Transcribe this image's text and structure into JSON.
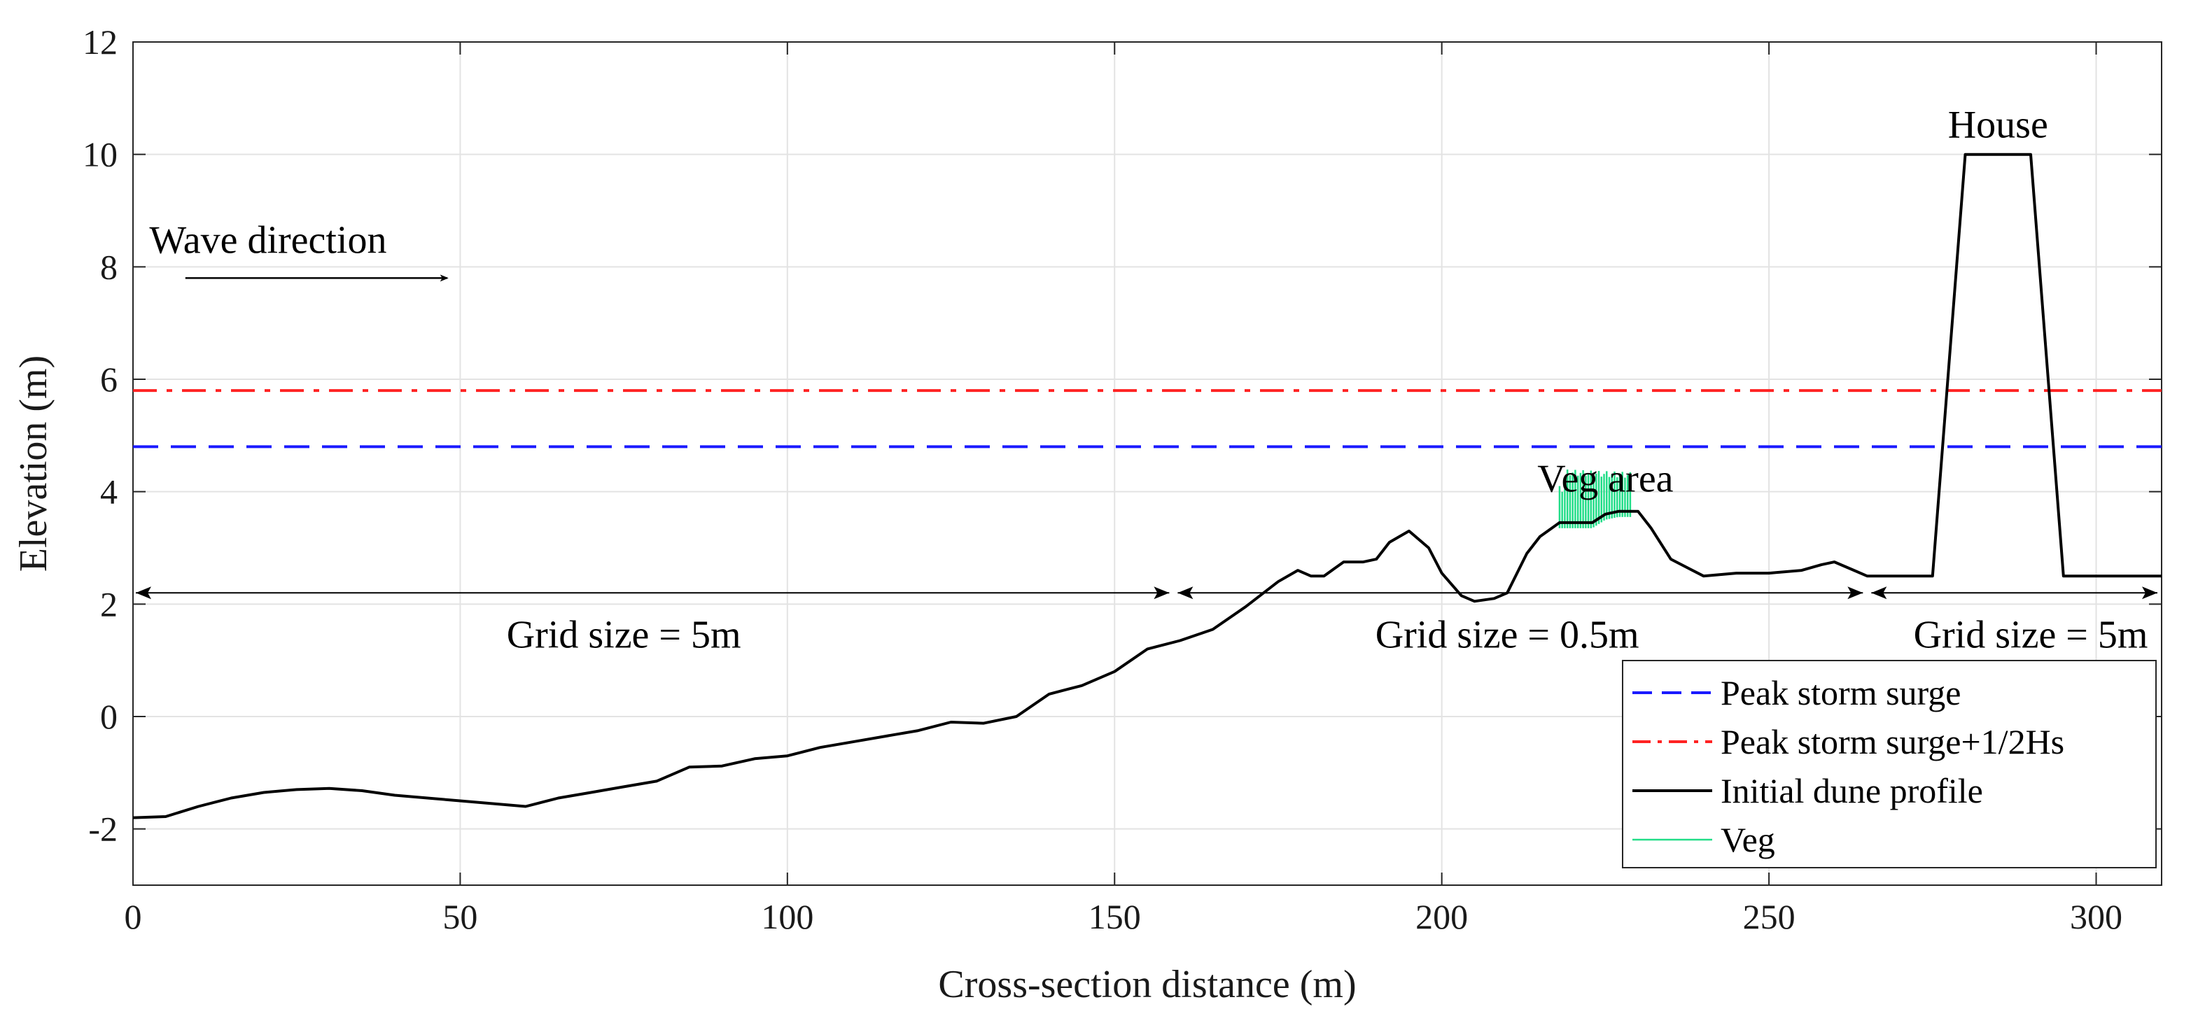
{
  "chart_data": {
    "type": "line",
    "title": "",
    "xlabel": "Cross-section distance (m)",
    "ylabel": "Elevation (m)",
    "xlim": [
      0,
      310
    ],
    "ylim": [
      -3,
      12
    ],
    "grid": true,
    "xticks": [
      0,
      50,
      100,
      150,
      200,
      250,
      300
    ],
    "yticks": [
      -2,
      0,
      2,
      4,
      6,
      8,
      10,
      12
    ],
    "legend_position": "bottom-right",
    "colors": {
      "surge": "#1a1aff",
      "surge_hs": "#ff2222",
      "profile": "#000000",
      "veg": "#22dd88"
    },
    "series": [
      {
        "name": "Peak storm surge",
        "style": "dashed",
        "x": [
          0,
          310
        ],
        "y": [
          4.8,
          4.8
        ]
      },
      {
        "name": "Peak storm surge+1/2Hs",
        "style": "dash-dot",
        "x": [
          0,
          310
        ],
        "y": [
          5.8,
          5.8
        ]
      },
      {
        "name": "Initial dune profile",
        "style": "solid",
        "x": [
          0,
          5,
          10,
          15,
          20,
          25,
          30,
          35,
          40,
          45,
          50,
          55,
          60,
          65,
          70,
          75,
          80,
          85,
          90,
          95,
          100,
          105,
          110,
          115,
          120,
          125,
          130,
          135,
          140,
          145,
          150,
          155,
          160,
          165,
          170,
          175,
          178,
          180,
          182,
          185,
          188,
          190,
          192,
          195,
          198,
          200,
          203,
          205,
          208,
          210,
          213,
          215,
          218,
          220,
          223,
          225,
          227,
          230,
          232,
          235,
          240,
          245,
          250,
          255,
          258,
          260,
          263,
          265,
          270,
          275,
          280,
          290,
          295,
          300,
          310
        ],
        "y": [
          -1.8,
          -1.78,
          -1.6,
          -1.45,
          -1.35,
          -1.3,
          -1.28,
          -1.32,
          -1.4,
          -1.45,
          -1.5,
          -1.55,
          -1.6,
          -1.45,
          -1.35,
          -1.25,
          -1.15,
          -0.9,
          -0.88,
          -0.75,
          -0.7,
          -0.55,
          -0.45,
          -0.35,
          -0.25,
          -0.1,
          -0.12,
          0.0,
          0.4,
          0.55,
          0.8,
          1.2,
          1.35,
          1.55,
          1.95,
          2.4,
          2.6,
          2.5,
          2.5,
          2.75,
          2.75,
          2.8,
          3.1,
          3.3,
          3.0,
          2.55,
          2.15,
          2.05,
          2.1,
          2.2,
          2.9,
          3.2,
          3.45,
          3.45,
          3.45,
          3.6,
          3.65,
          3.65,
          3.35,
          2.8,
          2.5,
          2.55,
          2.55,
          2.6,
          2.7,
          2.75,
          2.6,
          2.5,
          2.5,
          2.5,
          10.0,
          10.0,
          2.5,
          2.5,
          2.5
        ]
      },
      {
        "name": "Veg",
        "style": "stems",
        "x_range": [
          218,
          229
        ],
        "top_y": 4.3,
        "bottom_y": 3.5
      }
    ],
    "annotations": {
      "wave_direction": "Wave direction",
      "veg_area": "Veg area",
      "house": "House",
      "grid1": "Grid size = 5m",
      "grid2": "Grid size = 0.5m",
      "grid3": "Grid size = 5m"
    },
    "wave_arrow": {
      "x_from": 8,
      "x_to": 48,
      "y": 7.8
    },
    "grid_arrows": {
      "y": 2.2,
      "segments": [
        [
          0,
          159
        ],
        [
          159,
          265
        ],
        [
          265,
          310
        ]
      ]
    }
  }
}
